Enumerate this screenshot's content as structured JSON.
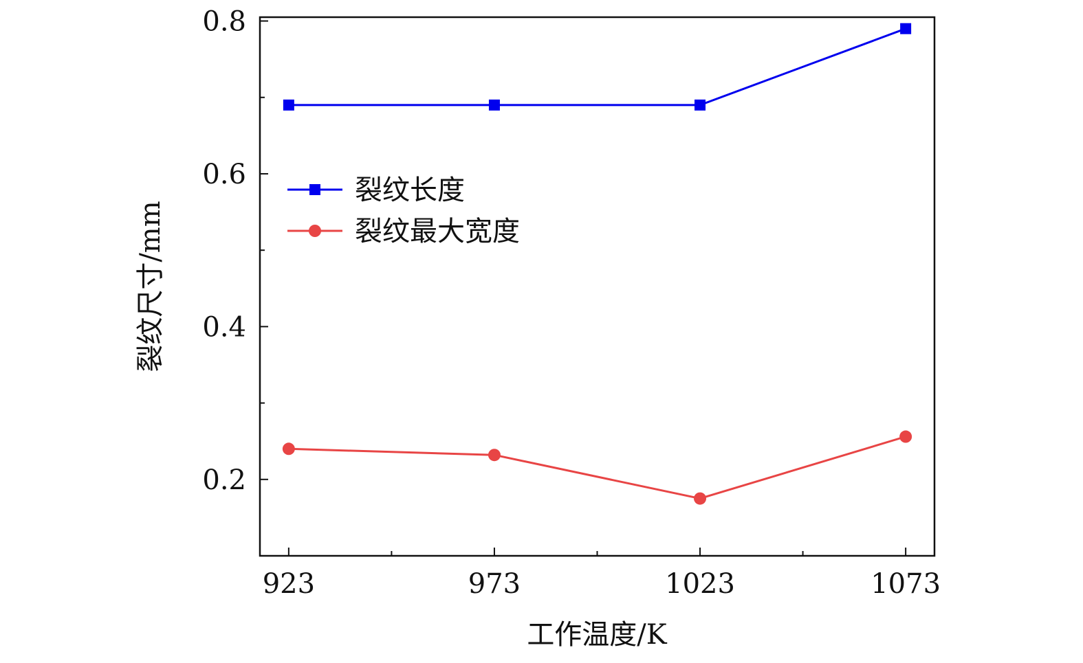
{
  "chart_data": {
    "type": "line",
    "title": "",
    "xlabel": "工作温度/K",
    "ylabel": "裂纹尺寸/mm",
    "x": [
      923,
      973,
      1023,
      1073
    ],
    "x_tick_labels": [
      "923",
      "973",
      "1023",
      "1073"
    ],
    "xlim": [
      916,
      1080
    ],
    "ylim": [
      0.1,
      0.805
    ],
    "y_ticks": [
      0.2,
      0.4,
      0.6,
      0.8
    ],
    "y_tick_labels": [
      "0.2",
      "0.4",
      "0.6",
      "0.8"
    ],
    "y_minor_ticks": [
      0.3,
      0.5,
      0.7
    ],
    "x_minor_ticks": [
      948,
      998,
      1048
    ],
    "grid": false,
    "legend_position": "upper-left",
    "series": [
      {
        "name": "裂纹长度",
        "values": [
          0.69,
          0.69,
          0.69,
          0.79
        ],
        "color": "#0000ee",
        "marker": "square"
      },
      {
        "name": "裂纹最大宽度",
        "values": [
          0.24,
          0.232,
          0.175,
          0.256
        ],
        "color": "#e84545",
        "marker": "circle"
      }
    ]
  }
}
